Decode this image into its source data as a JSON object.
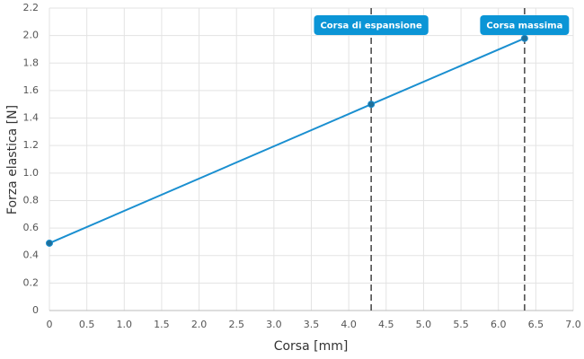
{
  "chart_data": {
    "type": "line",
    "x_label": "Corsa [mm]",
    "y_label": "Forza elastica [N]",
    "x": [
      0,
      4.3,
      6.35
    ],
    "series": [
      {
        "color": "#1a8fd0",
        "values": [
          0.49,
          1.5,
          1.98
        ]
      }
    ],
    "xlim": [
      0,
      7
    ],
    "ylim": [
      0,
      2.2
    ],
    "xticks": [
      0,
      0.5,
      {
        "value": 1,
        "label": "1.0"
      },
      1.5,
      {
        "value": 2,
        "label": "2.0"
      },
      2.5,
      {
        "value": 3,
        "label": "3.0"
      },
      3.5,
      {
        "value": 4,
        "label": "4.0"
      },
      4.5,
      {
        "value": 5,
        "label": "5.0"
      },
      5.5,
      {
        "value": 6,
        "label": "6.0"
      },
      6.5,
      {
        "value": 7,
        "label": "7.0"
      }
    ],
    "yticks": [
      0,
      0.2,
      0.4,
      0.6,
      0.8,
      {
        "value": 1,
        "label": "1.0"
      },
      1.2,
      1.4,
      1.6,
      1.8,
      {
        "value": 2,
        "label": "2.0"
      },
      2.2
    ],
    "grid": true,
    "annotations": [
      {
        "x": 4.3,
        "text": "Corsa di espansione"
      },
      {
        "x": 6.35,
        "text": "Corsa massima"
      }
    ],
    "annotation_color": "#0b95d6"
  }
}
